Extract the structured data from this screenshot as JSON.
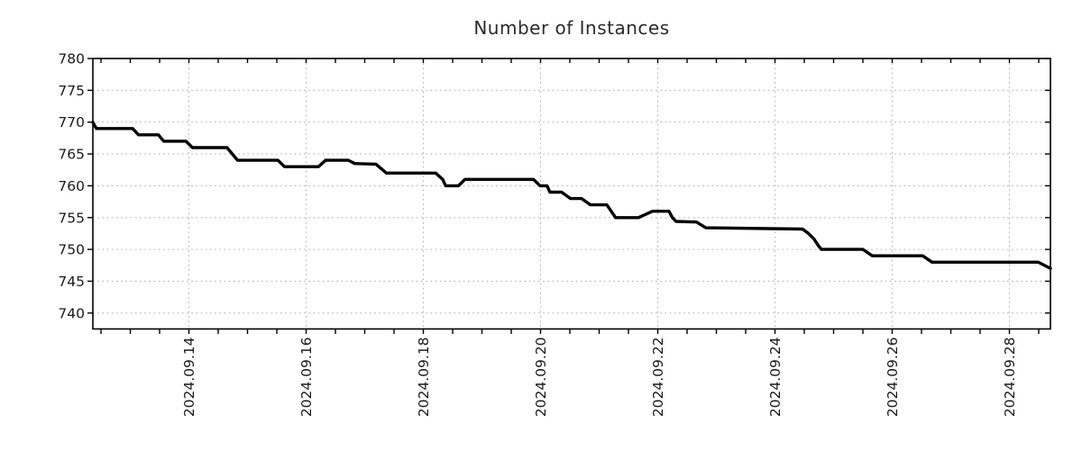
{
  "chart_data": {
    "type": "line",
    "title": "Number of Instances",
    "xlabel": "",
    "ylabel": "",
    "grid": true,
    "legend": "none",
    "xlim_days": [
      12.3615,
      28.7
    ],
    "ylim": [
      737.5,
      780
    ],
    "x_unit": "day of month, September 2024",
    "x_major_ticks": [
      {
        "day": 14,
        "label": "2024.09.14"
      },
      {
        "day": 16,
        "label": "2024.09.16"
      },
      {
        "day": 18,
        "label": "2024.09.18"
      },
      {
        "day": 20,
        "label": "2024.09.20"
      },
      {
        "day": 22,
        "label": "2024.09.22"
      },
      {
        "day": 24,
        "label": "2024.09.24"
      },
      {
        "day": 26,
        "label": "2024.09.26"
      },
      {
        "day": 28,
        "label": "2024.09.28"
      }
    ],
    "x_minor_tick_every_days": 0.5,
    "y_ticks": [
      740,
      745,
      750,
      755,
      760,
      765,
      770,
      775,
      780
    ],
    "y_tick_labels": [
      "740",
      "745",
      "750",
      "755",
      "760",
      "765",
      "770",
      "775",
      "780"
    ],
    "series": [
      {
        "name": "instances",
        "color": "#000000",
        "points": [
          [
            12.36,
            770
          ],
          [
            12.42,
            769
          ],
          [
            13.04,
            769
          ],
          [
            13.14,
            768
          ],
          [
            13.48,
            768
          ],
          [
            13.57,
            767
          ],
          [
            13.95,
            767
          ],
          [
            14.06,
            766
          ],
          [
            14.65,
            766
          ],
          [
            14.74,
            765
          ],
          [
            14.83,
            764
          ],
          [
            15.52,
            764
          ],
          [
            15.63,
            763
          ],
          [
            16.21,
            763
          ],
          [
            16.33,
            764
          ],
          [
            16.72,
            764
          ],
          [
            16.83,
            763.5
          ],
          [
            17.19,
            763.4
          ],
          [
            17.37,
            762
          ],
          [
            18.21,
            762
          ],
          [
            18.33,
            761
          ],
          [
            18.38,
            760
          ],
          [
            18.6,
            760
          ],
          [
            18.71,
            761
          ],
          [
            19.88,
            761
          ],
          [
            19.99,
            760
          ],
          [
            20.11,
            760
          ],
          [
            20.16,
            759
          ],
          [
            20.36,
            759
          ],
          [
            20.51,
            758
          ],
          [
            20.7,
            758
          ],
          [
            20.85,
            757
          ],
          [
            21.13,
            757
          ],
          [
            21.28,
            755
          ],
          [
            21.67,
            755
          ],
          [
            21.91,
            756
          ],
          [
            22.19,
            756
          ],
          [
            22.25,
            755
          ],
          [
            22.31,
            754.4
          ],
          [
            22.66,
            754.3
          ],
          [
            22.82,
            753.4
          ],
          [
            24.47,
            753.2
          ],
          [
            24.57,
            752.5
          ],
          [
            24.66,
            751.7
          ],
          [
            24.74,
            750.6
          ],
          [
            24.79,
            750
          ],
          [
            25.5,
            750
          ],
          [
            25.66,
            749
          ],
          [
            26.52,
            749
          ],
          [
            26.68,
            748
          ],
          [
            28.49,
            748
          ],
          [
            28.7,
            747
          ]
        ]
      }
    ],
    "colors": {
      "line": "#000000",
      "grid": "#b8b8b8",
      "axis": "#000000",
      "text": "#1a1a1a"
    }
  }
}
